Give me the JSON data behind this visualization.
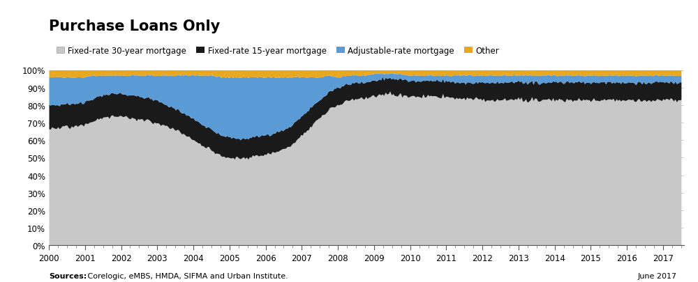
{
  "title": "Purchase Loans Only",
  "source_bold": "Sources:",
  "source_rest": " Corelogic, eMBS, HMDA, SIFMA and Urban Institute.",
  "date_text": "June 2017",
  "colors": {
    "fixed30": "#c8c8c8",
    "fixed15": "#1a1a1a",
    "arm": "#5b9bd5",
    "other": "#e8a820"
  },
  "legend_labels": [
    "Fixed-rate 30-year mortgage",
    "Fixed-rate 15-year mortgage",
    "Adjustable-rate mortgage",
    "Other"
  ],
  "years_detail": [
    2000.0,
    2000.25,
    2000.5,
    2000.75,
    2001.0,
    2001.25,
    2001.5,
    2001.75,
    2002.0,
    2002.25,
    2002.5,
    2002.75,
    2003.0,
    2003.25,
    2003.5,
    2003.75,
    2004.0,
    2004.25,
    2004.5,
    2004.75,
    2005.0,
    2005.25,
    2005.5,
    2005.75,
    2006.0,
    2006.25,
    2006.5,
    2006.75,
    2007.0,
    2007.25,
    2007.5,
    2007.75,
    2008.0,
    2008.25,
    2008.5,
    2008.75,
    2009.0,
    2009.25,
    2009.5,
    2009.75,
    2010.0,
    2010.25,
    2010.5,
    2010.75,
    2011.0,
    2011.25,
    2011.5,
    2011.75,
    2012.0,
    2012.25,
    2012.5,
    2012.75,
    2013.0,
    2013.25,
    2013.5,
    2013.75,
    2014.0,
    2014.25,
    2014.5,
    2014.75,
    2015.0,
    2015.25,
    2015.5,
    2015.75,
    2016.0,
    2016.25,
    2016.5,
    2016.75,
    2017.0,
    2017.25,
    2017.5
  ],
  "fixed30_d": [
    0.67,
    0.67,
    0.68,
    0.68,
    0.69,
    0.71,
    0.73,
    0.74,
    0.74,
    0.73,
    0.72,
    0.71,
    0.7,
    0.68,
    0.66,
    0.63,
    0.6,
    0.57,
    0.54,
    0.51,
    0.5,
    0.5,
    0.5,
    0.51,
    0.52,
    0.53,
    0.55,
    0.58,
    0.63,
    0.68,
    0.73,
    0.78,
    0.8,
    0.83,
    0.84,
    0.84,
    0.85,
    0.86,
    0.86,
    0.86,
    0.85,
    0.85,
    0.85,
    0.85,
    0.85,
    0.84,
    0.84,
    0.84,
    0.83,
    0.83,
    0.83,
    0.83,
    0.83,
    0.83,
    0.83,
    0.83,
    0.83,
    0.83,
    0.83,
    0.83,
    0.83,
    0.83,
    0.83,
    0.83,
    0.83,
    0.83,
    0.83,
    0.83,
    0.83,
    0.83,
    0.83
  ],
  "fixed15_d": [
    0.13,
    0.13,
    0.13,
    0.13,
    0.13,
    0.13,
    0.13,
    0.13,
    0.13,
    0.13,
    0.13,
    0.13,
    0.13,
    0.12,
    0.12,
    0.12,
    0.12,
    0.12,
    0.12,
    0.12,
    0.12,
    0.11,
    0.11,
    0.11,
    0.11,
    0.11,
    0.11,
    0.11,
    0.11,
    0.11,
    0.1,
    0.1,
    0.1,
    0.09,
    0.09,
    0.09,
    0.09,
    0.09,
    0.09,
    0.09,
    0.09,
    0.09,
    0.09,
    0.09,
    0.09,
    0.09,
    0.09,
    0.09,
    0.1,
    0.1,
    0.1,
    0.1,
    0.1,
    0.1,
    0.1,
    0.1,
    0.1,
    0.1,
    0.1,
    0.1,
    0.1,
    0.1,
    0.1,
    0.1,
    0.1,
    0.1,
    0.1,
    0.1,
    0.1,
    0.1,
    0.1
  ],
  "arm_d": [
    0.16,
    0.16,
    0.15,
    0.15,
    0.14,
    0.13,
    0.11,
    0.1,
    0.1,
    0.11,
    0.12,
    0.13,
    0.14,
    0.17,
    0.19,
    0.22,
    0.25,
    0.28,
    0.31,
    0.33,
    0.34,
    0.35,
    0.35,
    0.34,
    0.33,
    0.32,
    0.3,
    0.27,
    0.22,
    0.17,
    0.13,
    0.09,
    0.06,
    0.05,
    0.04,
    0.04,
    0.04,
    0.03,
    0.03,
    0.03,
    0.03,
    0.03,
    0.03,
    0.03,
    0.03,
    0.04,
    0.04,
    0.04,
    0.04,
    0.04,
    0.04,
    0.04,
    0.04,
    0.04,
    0.04,
    0.04,
    0.04,
    0.04,
    0.04,
    0.04,
    0.04,
    0.04,
    0.04,
    0.04,
    0.04,
    0.04,
    0.04,
    0.04,
    0.04,
    0.04,
    0.04
  ],
  "other_d": [
    0.04,
    0.04,
    0.04,
    0.04,
    0.04,
    0.03,
    0.03,
    0.03,
    0.03,
    0.03,
    0.03,
    0.03,
    0.03,
    0.03,
    0.03,
    0.03,
    0.03,
    0.03,
    0.03,
    0.04,
    0.04,
    0.04,
    0.04,
    0.04,
    0.04,
    0.04,
    0.04,
    0.04,
    0.04,
    0.04,
    0.04,
    0.03,
    0.04,
    0.03,
    0.03,
    0.03,
    0.02,
    0.02,
    0.02,
    0.02,
    0.03,
    0.03,
    0.03,
    0.03,
    0.03,
    0.03,
    0.03,
    0.03,
    0.03,
    0.03,
    0.03,
    0.03,
    0.03,
    0.03,
    0.03,
    0.03,
    0.03,
    0.03,
    0.03,
    0.03,
    0.03,
    0.03,
    0.03,
    0.03,
    0.03,
    0.03,
    0.03,
    0.03,
    0.03,
    0.03,
    0.03
  ]
}
